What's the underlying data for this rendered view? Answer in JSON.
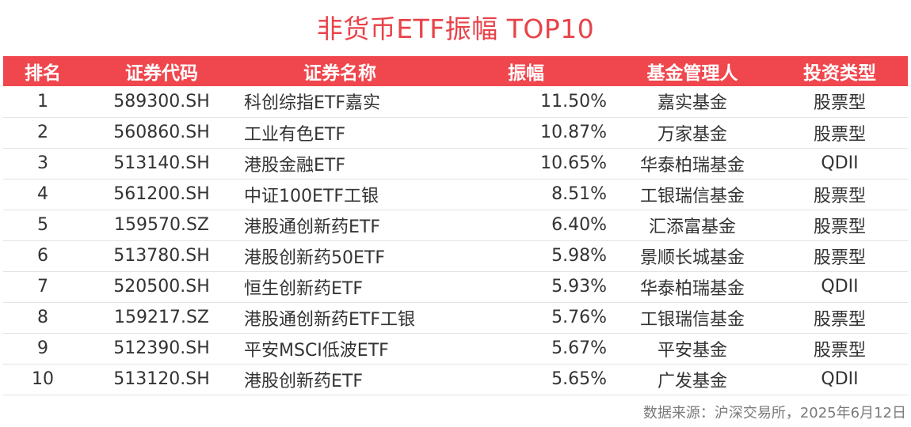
{
  "title": "非货币ETF振幅 TOP10",
  "source": "数据来源：沪深交易所，2025年6月12日",
  "colors": {
    "accent": "#e8434a",
    "header_bg": "#f0464d",
    "header_text": "#ffffff"
  },
  "chart_data": {
    "type": "table",
    "title": "非货币ETF振幅 TOP10",
    "columns": [
      "排名",
      "证券代码",
      "证券名称",
      "振幅",
      "基金管理人",
      "投资类型"
    ],
    "rows": [
      [
        "1",
        "589300.SH",
        "科创综指ETF嘉实",
        "11.50%",
        "嘉实基金",
        "股票型"
      ],
      [
        "2",
        "560860.SH",
        "工业有色ETF",
        "10.87%",
        "万家基金",
        "股票型"
      ],
      [
        "3",
        "513140.SH",
        "港股金融ETF",
        "10.65%",
        "华泰柏瑞基金",
        "QDII"
      ],
      [
        "4",
        "561200.SH",
        "中证100ETF工银",
        "8.51%",
        "工银瑞信基金",
        "股票型"
      ],
      [
        "5",
        "159570.SZ",
        "港股通创新药ETF",
        "6.40%",
        "汇添富基金",
        "股票型"
      ],
      [
        "6",
        "513780.SH",
        "港股创新药50ETF",
        "5.98%",
        "景顺长城基金",
        "股票型"
      ],
      [
        "7",
        "520500.SH",
        "恒生创新药ETF",
        "5.93%",
        "华泰柏瑞基金",
        "QDII"
      ],
      [
        "8",
        "159217.SZ",
        "港股通创新药ETF工银",
        "5.76%",
        "工银瑞信基金",
        "股票型"
      ],
      [
        "9",
        "512390.SH",
        "平安MSCI低波ETF",
        "5.67%",
        "平安基金",
        "股票型"
      ],
      [
        "10",
        "513120.SH",
        "港股创新药ETF",
        "5.65%",
        "广发基金",
        "QDII"
      ]
    ]
  }
}
